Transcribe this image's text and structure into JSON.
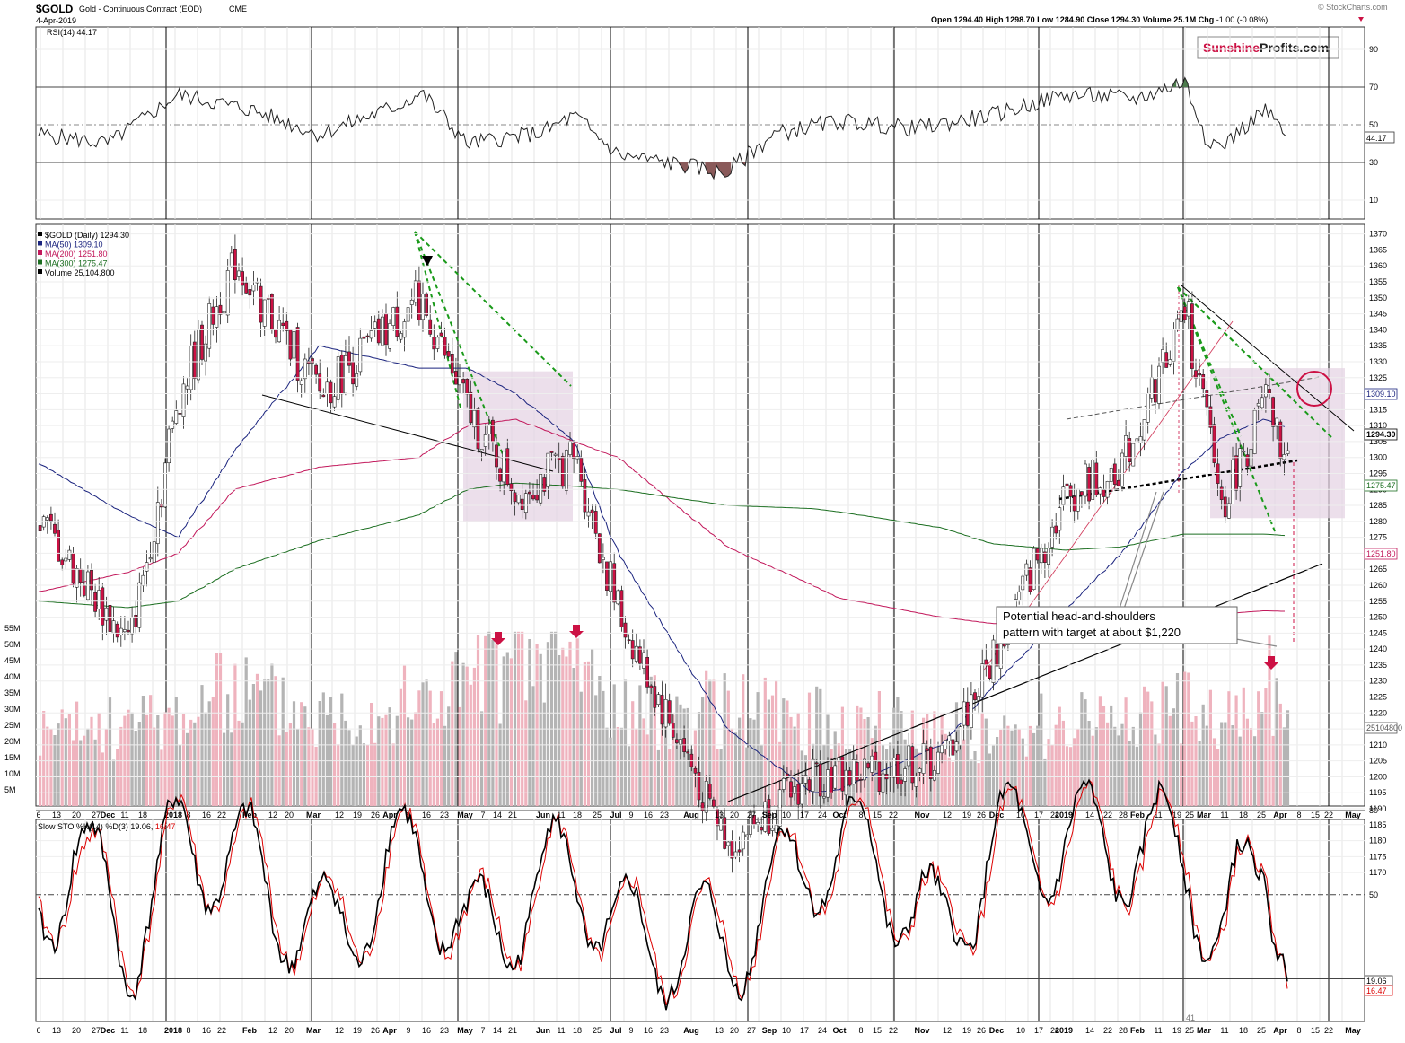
{
  "header": {
    "symbol": "$GOLD",
    "description": "Gold - Continuous Contract (EOD)",
    "exchange": "CME",
    "date": "4-Apr-2019",
    "ohlc": {
      "open_label": "Open",
      "open": "1294.40",
      "high_label": "High",
      "high": "1298.70",
      "low_label": "Low",
      "low": "1284.90",
      "close_label": "Close",
      "close": "1294.30",
      "volume_label": "Volume",
      "volume": "25.1M",
      "chg_label": "Chg",
      "chg": "-1.00 (-0.08%)"
    },
    "credit": "© StockCharts.com",
    "logo_part1": "Sunshine",
    "logo_part2": "Profits.com"
  },
  "rsi_panel": {
    "label": "RSI(14) 44.17",
    "current": "44.17",
    "ticks": [
      "90",
      "70",
      "50",
      "30",
      "10"
    ]
  },
  "price_panel": {
    "legend": [
      {
        "text": "$GOLD (Daily) 1294.30",
        "color": "#000000"
      },
      {
        "text": "MA(50) 1309.10",
        "color": "#1a237e"
      },
      {
        "text": "MA(200) 1251.80",
        "color": "#c2185b"
      },
      {
        "text": "MA(300) 1275.47",
        "color": "#1b6e20"
      },
      {
        "text": "Volume 25,104,800",
        "color": "#000000"
      }
    ],
    "price_ticks": [
      "1370",
      "1365",
      "1360",
      "1355",
      "1350",
      "1345",
      "1340",
      "1335",
      "1330",
      "1325",
      "1320",
      "1315",
      "1310",
      "1305",
      "1300",
      "1295",
      "1290",
      "1285",
      "1280",
      "1275",
      "1270",
      "1265",
      "1260",
      "1255",
      "1250",
      "1245",
      "1240",
      "1235",
      "1230",
      "1225",
      "1220",
      "1215",
      "1210",
      "1205",
      "1200",
      "1195",
      "1190",
      "1185",
      "1180",
      "1175",
      "1170"
    ],
    "volume_ticks": [
      "55M",
      "50M",
      "45M",
      "40M",
      "35M",
      "30M",
      "25M",
      "20M",
      "15M",
      "10M",
      "5M"
    ],
    "value_tags": [
      {
        "text": "1309.10",
        "color": "#1a237e"
      },
      {
        "text": "1294.30",
        "color": "#000000"
      },
      {
        "text": "1275.47",
        "color": "#1b6e20"
      },
      {
        "text": "1251.80",
        "color": "#c2185b"
      },
      {
        "text": "25104800",
        "color": "#555555"
      }
    ],
    "annotation_line1": "Potential head-and-shoulders",
    "annotation_line2": "pattern with target at about $1,220"
  },
  "time_axis": {
    "labels": [
      "6",
      "13",
      "20",
      "27",
      "Dec",
      "11",
      "18",
      "2018",
      "8",
      "16",
      "22",
      "Feb",
      "12",
      "20",
      "Mar",
      "12",
      "19",
      "26",
      "Apr",
      "9",
      "16",
      "23",
      "May",
      "7",
      "14",
      "21",
      "Jun",
      "11",
      "18",
      "25",
      "Jul",
      "9",
      "16",
      "23",
      "Aug",
      "13",
      "20",
      "27",
      "Sep",
      "10",
      "17",
      "24",
      "Oct",
      "8",
      "15",
      "22",
      "Nov",
      "12",
      "19",
      "26",
      "Dec",
      "10",
      "17",
      "24",
      "2019",
      "14",
      "22",
      "28",
      "Feb",
      "11",
      "19",
      "25",
      "Mar",
      "11",
      "18",
      "25",
      "Apr",
      "8",
      "15",
      "22",
      "May"
    ]
  },
  "sto_panel": {
    "label_prefix": "Slow STO %K(14) %D(3) ",
    "k_value": "19.06",
    "d_value": "16.47",
    "ticks": [
      "80",
      "50",
      "20"
    ],
    "bottom_mark": "41"
  },
  "colors": {
    "up_candle": "#ffffff",
    "down_candle": "#cc1144",
    "ma50": "#1a237e",
    "ma200": "#c2185b",
    "ma300": "#1b6e20",
    "green_dashed": "#1a9a1a",
    "shade": "#e4d2e2",
    "arrow_red": "#cc1144",
    "stoch_k": "#000000",
    "stoch_d": "#dd0000"
  },
  "chart_data": [
    {
      "type": "line",
      "panel": "RSI(14)",
      "ylim": [
        0,
        100
      ],
      "x": [
        "2017-11-06",
        "2017-12-04",
        "2018-01-02",
        "2018-02-01",
        "2018-03-01",
        "2018-04-02",
        "2018-04-12",
        "2018-05-01",
        "2018-06-01",
        "2018-06-14",
        "2018-07-02",
        "2018-08-01",
        "2018-08-15",
        "2018-09-04",
        "2018-10-01",
        "2018-11-01",
        "2018-12-03",
        "2019-01-02",
        "2019-02-01",
        "2019-02-20",
        "2019-03-01",
        "2019-03-07",
        "2019-03-25",
        "2019-04-04"
      ],
      "series": [
        {
          "values": [
            45,
            40,
            66,
            58,
            45,
            60,
            67,
            40,
            46,
            55,
            34,
            28,
            24,
            45,
            52,
            48,
            55,
            66,
            64,
            73,
            44,
            38,
            58,
            44.17
          ]
        }
      ]
    },
    {
      "type": "candlestick",
      "panel": "price",
      "ylim": [
        1165,
        1373
      ],
      "x": [
        "2017-11-06",
        "2017-12-12",
        "2018-01-02",
        "2018-01-25",
        "2018-03-01",
        "2018-04-11",
        "2018-05-01",
        "2018-05-21",
        "2018-06-14",
        "2018-07-02",
        "2018-08-16",
        "2018-09-20",
        "2018-10-01",
        "2018-11-12",
        "2018-12-03",
        "2019-01-02",
        "2019-01-25",
        "2019-02-20",
        "2019-03-07",
        "2019-03-25",
        "2019-04-04"
      ],
      "series": [
        {
          "name": "$GOLD",
          "values": [
            1280,
            1241,
            1320,
            1361,
            1320,
            1350,
            1314,
            1289,
            1300,
            1250,
            1179,
            1200,
            1200,
            1205,
            1238,
            1288,
            1298,
            1346,
            1285,
            1318,
            1294.3
          ]
        },
        {
          "name": "MA(50)",
          "values": [
            1298,
            1282,
            1275,
            1302,
            1335,
            1328,
            1328,
            1320,
            1305,
            1270,
            1215,
            1195,
            1196,
            1210,
            1228,
            1252,
            1270,
            1296,
            1306,
            1312,
            1309.1
          ]
        },
        {
          "name": "MA(200)",
          "values": [
            1258,
            1264,
            1270,
            1290,
            1297,
            1300,
            1310,
            1312,
            1305,
            1300,
            1272,
            1260,
            1256,
            1250,
            1248,
            1248,
            1249,
            1250,
            1251,
            1252,
            1251.8
          ]
        },
        {
          "name": "MA(300)",
          "values": [
            1255,
            1253,
            1255,
            1265,
            1274,
            1282,
            1290,
            1292,
            1291,
            1290,
            1285,
            1284,
            1283,
            1278,
            1273,
            1271,
            1272,
            1276,
            1276,
            1276,
            1275.47
          ]
        }
      ]
    },
    {
      "type": "bar",
      "panel": "Volume",
      "ylim": [
        0,
        57000000
      ],
      "x": [
        "2017-11-06",
        "2017-12-12",
        "2018-01-02",
        "2018-01-25",
        "2018-03-01",
        "2018-04-11",
        "2018-05-15",
        "2018-06-14",
        "2018-07-02",
        "2018-08-16",
        "2018-09-20",
        "2018-10-15",
        "2018-11-12",
        "2018-12-03",
        "2019-01-02",
        "2019-02-20",
        "2019-03-07",
        "2019-03-25",
        "2019-03-27",
        "2019-04-04"
      ],
      "series": [
        {
          "name": "Volume",
          "values": [
            24000000,
            26000000,
            30000000,
            38000000,
            30000000,
            34000000,
            45000000,
            49000000,
            30000000,
            32000000,
            28000000,
            27000000,
            25000000,
            22000000,
            28000000,
            32000000,
            25000000,
            33000000,
            40000000,
            25104800
          ]
        }
      ]
    },
    {
      "type": "line",
      "panel": "Slow STO %K(14) %D(3)",
      "ylim": [
        0,
        100
      ],
      "x": [
        "2017-11-06",
        "2017-11-20",
        "2017-12-12",
        "2018-01-04",
        "2018-02-01",
        "2018-03-01",
        "2018-04-11",
        "2018-05-01",
        "2018-06-14",
        "2018-07-02",
        "2018-08-16",
        "2018-09-20",
        "2018-10-15",
        "2018-11-12",
        "2018-12-03",
        "2019-01-02",
        "2019-02-20",
        "2019-03-07",
        "2019-03-25",
        "2019-04-04"
      ],
      "series": [
        {
          "name": "%K",
          "values": [
            35,
            88,
            10,
            95,
            70,
            12,
            85,
            10,
            75,
            15,
            8,
            85,
            80,
            12,
            88,
            92,
            85,
            10,
            85,
            19.06
          ]
        },
        {
          "name": "%D",
          "values": [
            33,
            84,
            12,
            92,
            72,
            14,
            82,
            12,
            72,
            17,
            10,
            82,
            82,
            14,
            85,
            90,
            83,
            12,
            82,
            16.47
          ]
        }
      ]
    }
  ]
}
